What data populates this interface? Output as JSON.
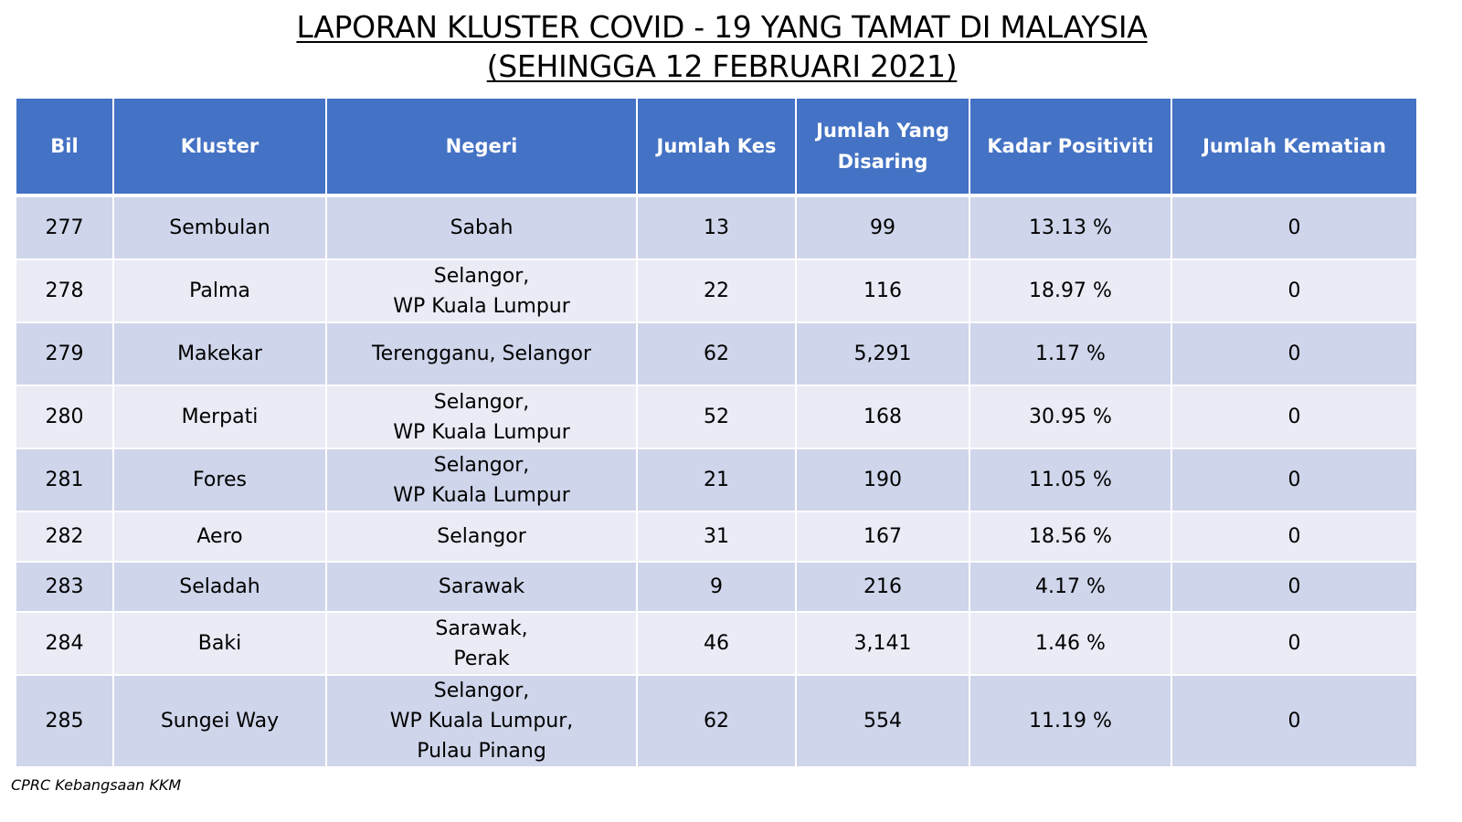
{
  "title": {
    "line1": "LAPORAN KLUSTER COVID - 19 YANG TAMAT DI MALAYSIA",
    "line2": "(SEHINGGA 12 FEBRUARI 2021)"
  },
  "table": {
    "headers": [
      "Bil",
      "Kluster",
      "Negeri",
      "Jumlah Kes",
      "Jumlah Yang Disaring",
      "Kadar Positiviti",
      "Jumlah Kematian"
    ],
    "header_disaring_lines": [
      "Jumlah Yang",
      "Disaring"
    ],
    "rows": [
      {
        "bil": "277",
        "kluster": "Sembulan",
        "negeri": [
          "Sabah"
        ],
        "kes": "13",
        "disaring": "99",
        "positiviti": "13.13 %",
        "kematian": "0"
      },
      {
        "bil": "278",
        "kluster": "Palma",
        "negeri": [
          "Selangor,",
          "WP Kuala Lumpur"
        ],
        "kes": "22",
        "disaring": "116",
        "positiviti": "18.97 %",
        "kematian": "0"
      },
      {
        "bil": "279",
        "kluster": "Makekar",
        "negeri": [
          "Terengganu, Selangor"
        ],
        "kes": "62",
        "disaring": "5,291",
        "positiviti": "1.17 %",
        "kematian": "0"
      },
      {
        "bil": "280",
        "kluster": "Merpati",
        "negeri": [
          "Selangor,",
          "WP Kuala Lumpur"
        ],
        "kes": "52",
        "disaring": "168",
        "positiviti": "30.95 %",
        "kematian": "0"
      },
      {
        "bil": "281",
        "kluster": "Fores",
        "negeri": [
          "Selangor,",
          "WP Kuala Lumpur"
        ],
        "kes": "21",
        "disaring": "190",
        "positiviti": "11.05 %",
        "kematian": "0"
      },
      {
        "bil": "282",
        "kluster": "Aero",
        "negeri": [
          "Selangor"
        ],
        "kes": "31",
        "disaring": "167",
        "positiviti": "18.56 %",
        "kematian": "0"
      },
      {
        "bil": "283",
        "kluster": "Seladah",
        "negeri": [
          "Sarawak"
        ],
        "kes": "9",
        "disaring": "216",
        "positiviti": "4.17 %",
        "kematian": "0"
      },
      {
        "bil": "284",
        "kluster": "Baki",
        "negeri": [
          "Sarawak,",
          "Perak"
        ],
        "kes": "46",
        "disaring": "3,141",
        "positiviti": "1.46 %",
        "kematian": "0"
      },
      {
        "bil": "285",
        "kluster": "Sungei Way",
        "negeri": [
          "Selangor,",
          "WP Kuala Lumpur,",
          "Pulau Pinang"
        ],
        "kes": "62",
        "disaring": "554",
        "positiviti": "11.19 %",
        "kematian": "0"
      }
    ]
  },
  "footer": "CPRC Kebangsaan KKM",
  "colors": {
    "header_bg": "#4472c4",
    "row_dark": "#cfd5ea",
    "row_light": "#e9ebf5"
  }
}
